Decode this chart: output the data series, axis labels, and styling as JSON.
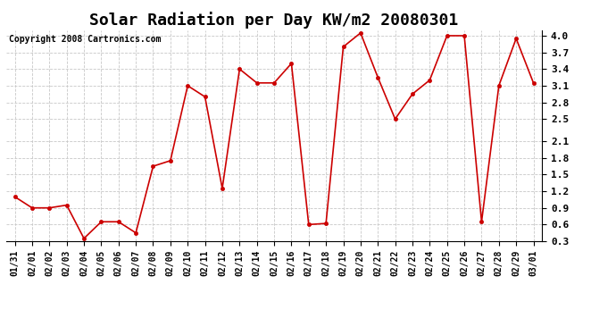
{
  "title": "Solar Radiation per Day KW/m2 20080301",
  "copyright": "Copyright 2008 Cartronics.com",
  "dates": [
    "01/31",
    "02/01",
    "02/02",
    "02/03",
    "02/04",
    "02/05",
    "02/06",
    "02/07",
    "02/08",
    "02/09",
    "02/10",
    "02/11",
    "02/12",
    "02/13",
    "02/14",
    "02/15",
    "02/16",
    "02/17",
    "02/18",
    "02/19",
    "02/20",
    "02/21",
    "02/22",
    "02/23",
    "02/24",
    "02/25",
    "02/26",
    "02/27",
    "02/28",
    "02/29",
    "03/01"
  ],
  "values": [
    1.1,
    0.9,
    0.9,
    0.95,
    0.35,
    0.65,
    0.65,
    0.45,
    1.65,
    1.75,
    3.1,
    2.9,
    1.25,
    3.4,
    3.15,
    3.15,
    3.5,
    0.6,
    0.62,
    3.8,
    4.05,
    3.25,
    2.5,
    2.95,
    3.2,
    4.0,
    4.0,
    0.65,
    3.1,
    3.95,
    3.15
  ],
  "line_color": "#cc0000",
  "marker": "o",
  "marker_size": 3,
  "ylim": [
    0.3,
    4.1
  ],
  "yticks": [
    0.3,
    0.6,
    0.9,
    1.2,
    1.5,
    1.8,
    2.1,
    2.5,
    2.8,
    3.1,
    3.4,
    3.7,
    4.0
  ],
  "bg_color": "#ffffff",
  "grid_color": "#c8c8c8",
  "title_fontsize": 13,
  "copyright_fontsize": 7,
  "tick_fontsize": 7,
  "ytick_fontsize": 8
}
